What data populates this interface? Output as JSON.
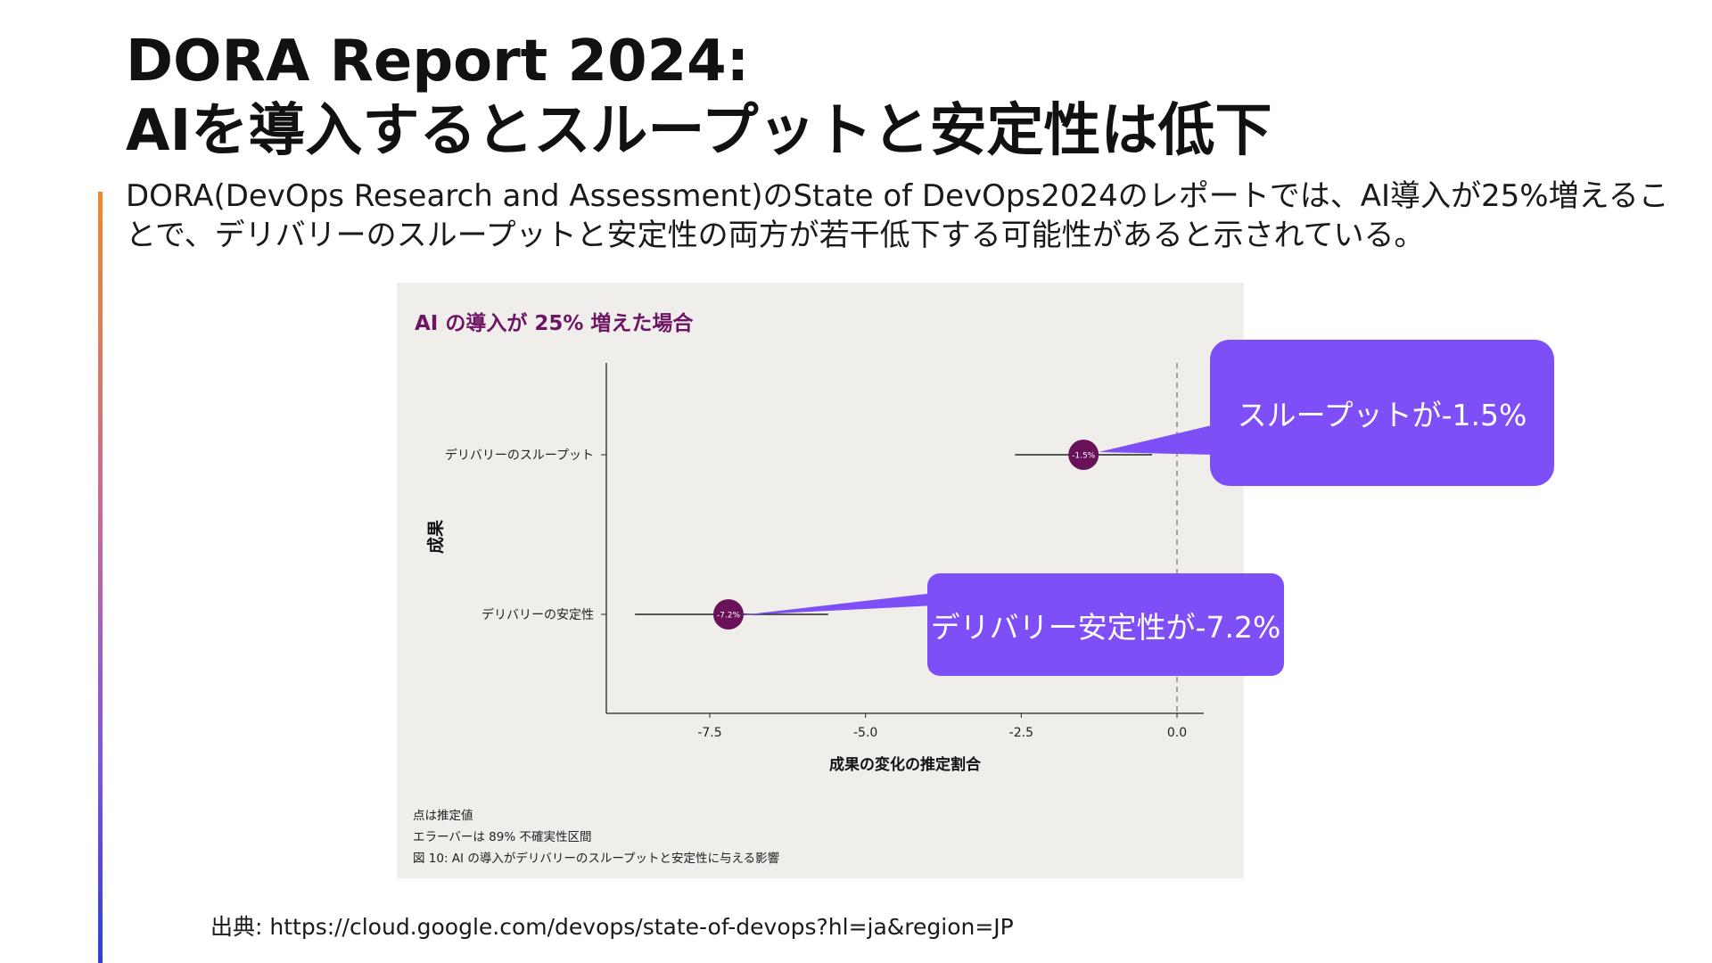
{
  "slide": {
    "title_line1": "DORA Report 2024:",
    "title_line2": "AIを導入するとスループットと安定性は低下",
    "description": "DORA(DevOps Research and Assessment)のState of DevOps2024のレポートでは、AI導入が25%増えることで、デリバリーのスループットと安定性の両方が若干低下する可能性があると示されている。",
    "source": "出典: https://cloud.google.com/devops/state-of-devops?hl=ja&region=JP",
    "accent_color": "#7e4ff7"
  },
  "callouts": [
    {
      "text": "スループットが-1.5%"
    },
    {
      "text": "デリバリー安定性が-7.2%"
    }
  ],
  "chart_data": {
    "type": "scatter",
    "subtype": "point-estimate-with-error-bars",
    "title": "AI の導入が 25% 増えた場合",
    "xlabel": "成果の変化の推定割合",
    "ylabel": "成果",
    "xlim": [
      -9.0,
      0.5
    ],
    "x_ticks": [
      -7.5,
      -5.0,
      -2.5,
      0.0
    ],
    "x_tick_labels": [
      "-7.5",
      "-5.0",
      "-2.5",
      "0.0"
    ],
    "reference_line": 0.0,
    "categories": [
      "デリバリーのスループット",
      "デリバリーの安定性"
    ],
    "points": [
      {
        "category": "デリバリーのスループット",
        "estimate": -1.5,
        "ci_low": -2.6,
        "ci_high": -0.4,
        "label": "-1.5%"
      },
      {
        "category": "デリバリーの安定性",
        "estimate": -7.2,
        "ci_low": -8.7,
        "ci_high": -5.6,
        "label": "-7.2%"
      }
    ],
    "point_color": "#6a1259",
    "notes": [
      "点は推定値",
      "エラーバーは 89% 不確実性区間",
      "図 10: AI の導入がデリバリーのスループットと安定性に与える影響"
    ]
  }
}
